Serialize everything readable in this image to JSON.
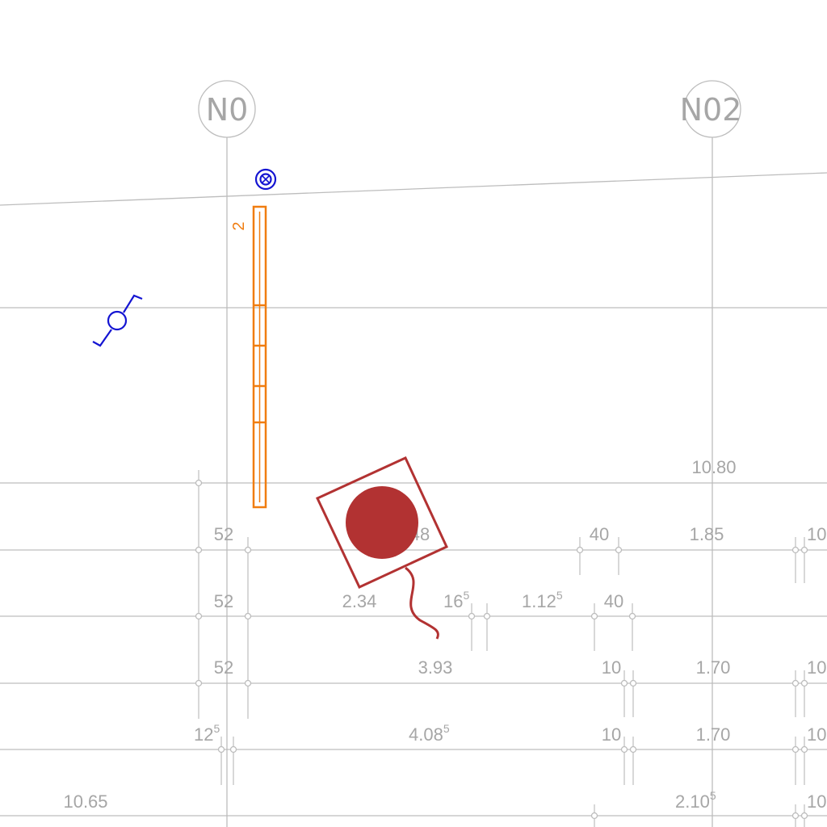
{
  "axes": {
    "left": "N0",
    "right": "N02"
  },
  "element_tag": "2",
  "dimensions": {
    "d_1080": "10.80",
    "d_52_a": "52",
    "d_52_b": "52",
    "d_52_c": "52",
    "d_48": "48",
    "d_40_a": "40",
    "d_40_b": "40",
    "d_185": "1.85",
    "d_10_a": "10",
    "d_234": "2.34",
    "d_16": "16",
    "d_16_sup": "5",
    "d_112": "1.12",
    "d_112_sup": "5",
    "d_393": "3.93",
    "d_10_b": "10",
    "d_170_a": "1.70",
    "d_10_c": "10",
    "d_12": "12",
    "d_12_sup": "5",
    "d_408": "4.08",
    "d_408_sup": "5",
    "d_10_d": "10",
    "d_170_b": "1.70",
    "d_10_e": "10",
    "d_1065": "10.65",
    "d_210": "2.10",
    "d_210_sup": "5",
    "d_10_f": "10"
  },
  "colors": {
    "grid": "#bdbdbd",
    "text": "#a6a6a6",
    "element": "#f07d10",
    "symbol": "#1414d2",
    "marker": "#b23232"
  },
  "icons": {
    "top_symbol": "circled-x-icon",
    "side_symbol": "valve-icon",
    "marker": "filled-circle-in-square-icon"
  }
}
